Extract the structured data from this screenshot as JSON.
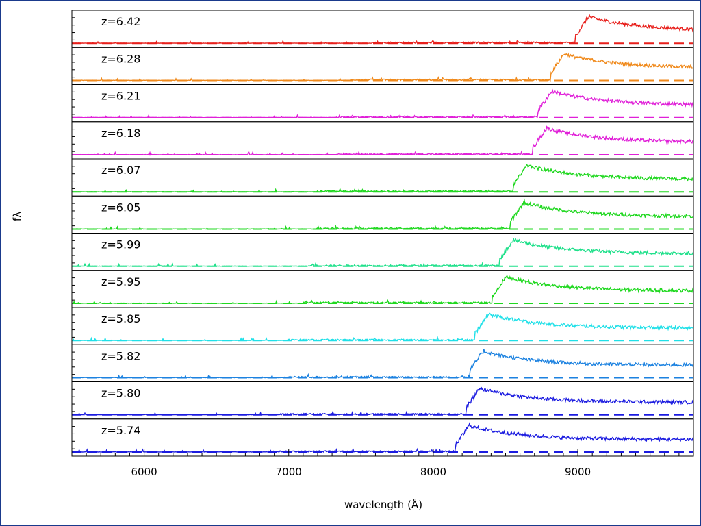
{
  "chart_data": {
    "type": "line",
    "xlabel": "wavelength (Å)",
    "ylabel": "fλ",
    "xlim": [
      5500,
      9800
    ],
    "xticks": [
      6000,
      7000,
      8000,
      9000
    ],
    "xtick_labels": [
      "6000",
      "7000",
      "8000",
      "9000"
    ],
    "grid": false,
    "panels": [
      {
        "label": "z=6.42",
        "redshift": 6.42,
        "color": "#e8201c"
      },
      {
        "label": "z=6.28",
        "redshift": 6.28,
        "color": "#f08a1c"
      },
      {
        "label": "z=6.21",
        "redshift": 6.21,
        "color": "#e020d8"
      },
      {
        "label": "z=6.18",
        "redshift": 6.18,
        "color": "#e020d8"
      },
      {
        "label": "z=6.07",
        "redshift": 6.07,
        "color": "#20d820"
      },
      {
        "label": "z=6.05",
        "redshift": 6.05,
        "color": "#20d820"
      },
      {
        "label": "z=5.99",
        "redshift": 5.99,
        "color": "#1ee08a"
      },
      {
        "label": "z=5.95",
        "redshift": 5.95,
        "color": "#20d820"
      },
      {
        "label": "z=5.85",
        "redshift": 5.85,
        "color": "#20e0e8"
      },
      {
        "label": "z=5.82",
        "redshift": 5.82,
        "color": "#1c82e0"
      },
      {
        "label": "z=5.80",
        "redshift": 5.8,
        "color": "#1c1ce0"
      },
      {
        "label": "z=5.74",
        "redshift": 5.74,
        "color": "#1c1ce0"
      }
    ]
  }
}
